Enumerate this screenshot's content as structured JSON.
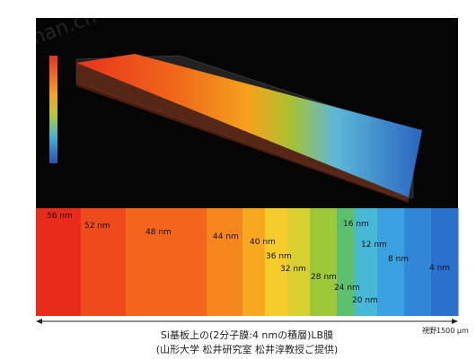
{
  "watermark": "yizhan.cn",
  "layers": [
    "56 nm",
    "52 nm",
    "48 nm",
    "44 nm",
    "40 nm",
    "36 nm",
    "32 nm",
    "28 nm",
    "24 nm",
    "20 nm",
    "16 nm",
    "12 nm",
    "8 nm",
    "4 nm"
  ],
  "scale_label": "視野1500 μm",
  "caption": [
    "Si基板上の(2分子膜:4 nmの積層)LB膜",
    "(山形大学 松井研究室 松井淳教授ご提供)"
  ]
}
